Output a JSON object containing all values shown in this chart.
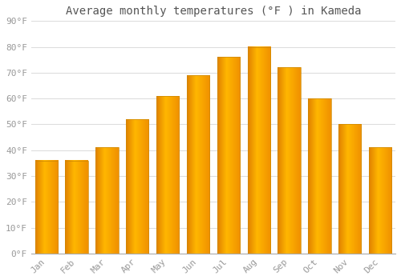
{
  "title": "Average monthly temperatures (°F ) in Kameda",
  "months": [
    "Jan",
    "Feb",
    "Mar",
    "Apr",
    "May",
    "Jun",
    "Jul",
    "Aug",
    "Sep",
    "Oct",
    "Nov",
    "Dec"
  ],
  "values": [
    36,
    36,
    41,
    52,
    61,
    69,
    76,
    80,
    72,
    60,
    50,
    41
  ],
  "bar_color_center": "#FFB700",
  "bar_color_edge": "#E07800",
  "background_color": "#FFFFFF",
  "grid_color": "#DDDDDD",
  "ylim": [
    0,
    90
  ],
  "yticks": [
    0,
    10,
    20,
    30,
    40,
    50,
    60,
    70,
    80,
    90
  ],
  "title_fontsize": 10,
  "tick_fontsize": 8,
  "tick_color": "#999999",
  "title_color": "#555555"
}
